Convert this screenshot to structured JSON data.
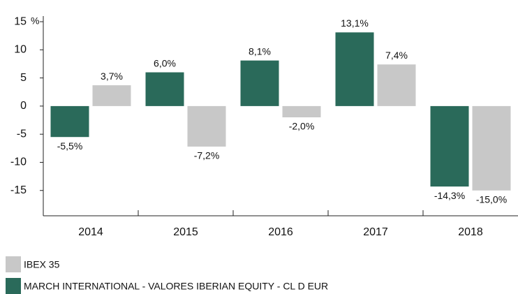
{
  "chart_data": {
    "type": "bar",
    "categories": [
      "2014",
      "2015",
      "2016",
      "2017",
      "2018"
    ],
    "series": [
      {
        "name": "IBEX 35",
        "color": "#c8c8c8",
        "values": [
          3.7,
          -7.2,
          -2.0,
          7.4,
          -15.0
        ],
        "value_labels": [
          "3,7%",
          "-7,2%",
          "-2,0%",
          "7,4%",
          "-15,0%"
        ]
      },
      {
        "name": "MARCH INTERNATIONAL - VALORES IBERIAN EQUITY - CL D EUR",
        "color": "#2a6a5a",
        "values": [
          -5.5,
          6.0,
          8.1,
          13.1,
          -14.3
        ],
        "value_labels": [
          "-5,5%",
          "6,0%",
          "8,1%",
          "13,1%",
          "-14,3%"
        ]
      }
    ],
    "y_unit": "%",
    "ylim": [
      -19.5,
      16
    ],
    "yticks": [
      15,
      10,
      5,
      0,
      -5,
      -10,
      -15
    ],
    "grid": false
  }
}
